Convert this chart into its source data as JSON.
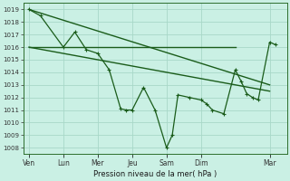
{
  "bg_color": "#caf0e4",
  "grid_color": "#a8d8c8",
  "line_color": "#1a5c1a",
  "x_ticks_labels": [
    "Ven",
    "Lun",
    "Mer",
    "Jeu",
    "Sam",
    "Dim",
    "Mar"
  ],
  "x_ticks_pos": [
    0,
    3,
    6,
    9,
    12,
    15,
    21
  ],
  "flat_line": {
    "x": [
      0,
      18
    ],
    "y": [
      1016.0,
      1016.0
    ]
  },
  "diag_steep": {
    "x": [
      0,
      21
    ],
    "y": [
      1019.0,
      1013.0
    ]
  },
  "diag_gentle": {
    "x": [
      0,
      21
    ],
    "y": [
      1016.0,
      1012.5
    ]
  },
  "jagged_x": [
    0,
    1,
    3,
    4,
    5,
    6,
    7,
    8,
    8.5,
    9,
    10,
    11,
    12,
    12.5,
    13,
    14,
    15,
    15.5,
    16,
    17,
    18,
    18.5,
    19,
    19.5,
    20,
    21,
    21.5
  ],
  "jagged_y": [
    1019.0,
    1018.5,
    1016.0,
    1017.2,
    1015.8,
    1015.5,
    1014.2,
    1011.1,
    1011.0,
    1011.0,
    1012.8,
    1011.0,
    1008.0,
    1009.0,
    1012.2,
    1012.0,
    1011.8,
    1011.5,
    1011.0,
    1010.7,
    1014.2,
    1013.3,
    1012.3,
    1012.0,
    1011.8,
    1016.4,
    1016.2
  ],
  "xlabel": "Pression niveau de la mer( hPa )",
  "ylim": [
    1007.5,
    1019.5
  ],
  "xlim": [
    -0.5,
    22.5
  ],
  "yticks": [
    1008,
    1009,
    1010,
    1011,
    1012,
    1013,
    1014,
    1015,
    1016,
    1017,
    1018,
    1019
  ]
}
